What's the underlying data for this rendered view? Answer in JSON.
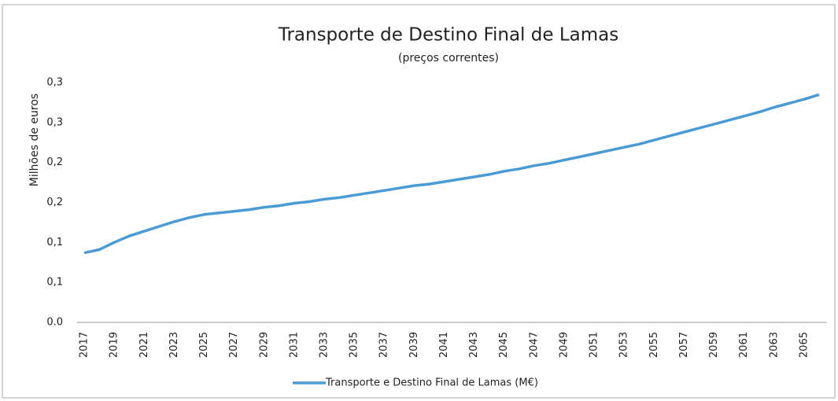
{
  "chart_data": {
    "type": "line",
    "title": "Transporte de Destino Final de Lamas",
    "subtitle": "(preços correntes)",
    "y_label": "Milhões de euros",
    "categories": [
      "2017",
      null,
      "2019",
      null,
      "2021",
      null,
      "2023",
      null,
      "2025",
      null,
      "2027",
      null,
      "2029",
      null,
      "2031",
      null,
      "2033",
      null,
      "2035",
      null,
      "2037",
      null,
      "2039",
      null,
      "2041",
      null,
      "2043",
      null,
      "2045",
      null,
      "2047",
      null,
      "2049",
      null,
      "2051",
      null,
      "2053",
      null,
      "2055",
      null,
      "2057",
      null,
      "2059",
      null,
      "2061",
      null,
      "2063",
      null,
      "2065",
      null
    ],
    "series": [
      {
        "name": "Transporte e Destino Final de Lamas (M€)",
        "color": "#4a9bd4",
        "values": [
          0.087,
          0.091,
          0.1,
          0.108,
          0.114,
          0.12,
          0.126,
          0.131,
          0.135,
          0.137,
          0.139,
          0.141,
          0.144,
          0.146,
          0.149,
          0.151,
          0.154,
          0.156,
          0.159,
          0.162,
          0.165,
          0.168,
          0.171,
          0.173,
          0.176,
          0.179,
          0.182,
          0.185,
          0.189,
          0.192,
          0.196,
          0.199,
          0.203,
          0.207,
          0.211,
          0.215,
          0.219,
          0.223,
          0.228,
          0.233,
          0.238,
          0.243,
          0.248,
          0.253,
          0.258,
          0.263,
          0.269,
          0.274,
          0.279,
          0.285
        ]
      }
    ],
    "ylim": [
      0,
      0.3
    ],
    "yticks": [
      {
        "value": 0,
        "label": "0.0"
      },
      {
        "value": 0.05,
        "label": "0,1"
      },
      {
        "value": 0.1,
        "label": "0,1"
      },
      {
        "value": 0.15,
        "label": "0,2"
      },
      {
        "value": 0.2,
        "label": "0,2"
      },
      {
        "value": 0.25,
        "label": "0,3"
      },
      {
        "value": 0.3,
        "label": "0,3"
      }
    ],
    "grid": false,
    "legend": "bottom"
  }
}
